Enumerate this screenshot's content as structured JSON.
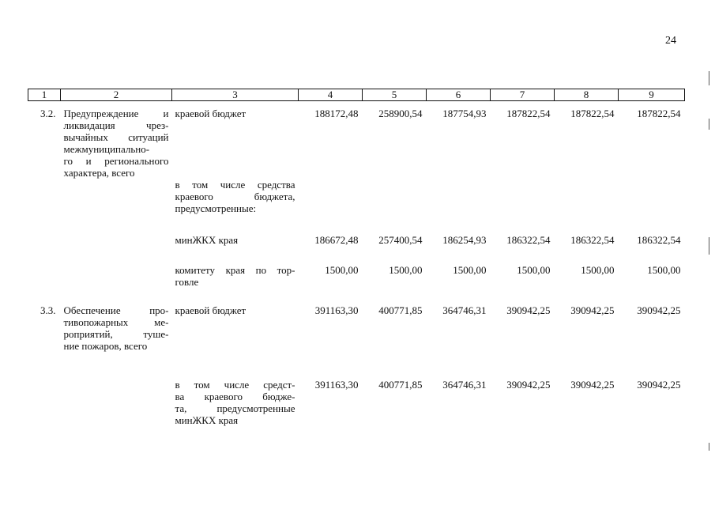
{
  "page_number": "24",
  "header_columns": [
    "1",
    "2",
    "3",
    "4",
    "5",
    "6",
    "7",
    "8",
    "9"
  ],
  "rows": [
    {
      "code": "3.2.",
      "name_lines": [
        "Предупреждение и",
        "ликвидация чрез-",
        "вычайных ситуаций",
        "межмуниципально-",
        "го и регионального",
        "характера, всего"
      ],
      "source_lines": [
        "краевой бюджет"
      ],
      "values": [
        "188172,48",
        "258900,54",
        "187754,93",
        "187822,54",
        "187822,54",
        "187822,54"
      ]
    },
    {
      "code": "",
      "name_lines": [],
      "source_lines": [
        "в том числе средства",
        "краевого бюджета,",
        "предусмотренные:"
      ],
      "values": [
        "",
        "",
        "",
        "",
        "",
        ""
      ]
    },
    {
      "code": "",
      "name_lines": [],
      "source_lines": [
        "минЖКХ края"
      ],
      "values": [
        "186672,48",
        "257400,54",
        "186254,93",
        "186322,54",
        "186322,54",
        "186322,54"
      ]
    },
    {
      "code": "",
      "name_lines": [],
      "source_lines": [
        "комитету края по тор-",
        "говле"
      ],
      "values": [
        "1500,00",
        "1500,00",
        "1500,00",
        "1500,00",
        "1500,00",
        "1500,00"
      ]
    },
    {
      "code": "3.3.",
      "name_lines": [
        "Обеспечение про-",
        "тивопожарных ме-",
        "роприятий, туше-",
        "ние пожаров, всего"
      ],
      "source_lines": [
        "краевой бюджет"
      ],
      "values": [
        "391163,30",
        "400771,85",
        "364746,31",
        "390942,25",
        "390942,25",
        "390942,25"
      ]
    },
    {
      "code": "",
      "name_lines": [],
      "source_lines": [
        "в том числе средст-",
        "ва краевого бюдже-",
        "та, предусмотренные",
        "минЖКХ края"
      ],
      "values": [
        "391163,30",
        "400771,85",
        "364746,31",
        "390942,25",
        "390942,25",
        "390942,25"
      ]
    }
  ]
}
